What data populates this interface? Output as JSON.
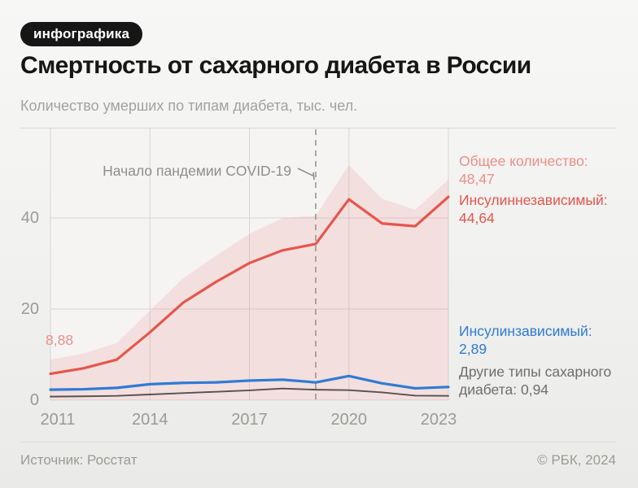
{
  "badge": {
    "label": "инфографика"
  },
  "header": {
    "title": "Смертность от сахарного диабета в России",
    "subtitle": "Количество умерших по типам диабета, тыс. чел."
  },
  "annotation": {
    "text": "Начало пандемии COVID-19"
  },
  "footer": {
    "source": "Источник: Росстат",
    "copyright": "© РБК, 2024"
  },
  "colors": {
    "page_bg": "#f2f2f0",
    "plot_bg": "#f5f4f3",
    "grid": "#d7d6d4",
    "rule": "#dcdbd9",
    "dashed_line": "#98968f",
    "annotation_text": "#8f8e8b",
    "axis_text": "#9b9a97",
    "title_text": "#161616",
    "subtitle_text": "#a3a2a0",
    "badge_bg": "#161616",
    "badge_text": "#ffffff",
    "total_label": "#ee8f89",
    "area_fill_rgba": "rgba(229,86,78,0.13)",
    "red_line": "#e5564d",
    "blue_line": "#2e7bd6",
    "dark_line": "#55524f",
    "dark_label": "#6f6e6c",
    "footer_text": "#9b9a97"
  },
  "chart_data": {
    "type": "area",
    "title": "Смертность от сахарного диабета в России",
    "subtitle": "Количество умерших по типам диабета, тыс. чел.",
    "x": [
      2011,
      2012,
      2013,
      2014,
      2015,
      2016,
      2017,
      2018,
      2019,
      2020,
      2021,
      2022,
      2023
    ],
    "x_tick_labels": [
      "2011",
      "2014",
      "2017",
      "2020",
      "2023"
    ],
    "x_tick_years": [
      2011,
      2014,
      2017,
      2020,
      2023
    ],
    "y_tick_labels": [
      "0",
      "20",
      "40"
    ],
    "y_tick_values": [
      0,
      20,
      40
    ],
    "ylim": [
      0,
      60
    ],
    "grid": true,
    "pandemic_marker": {
      "year": 2019,
      "text": "Начало пандемии COVID-19"
    },
    "series": [
      {
        "id": "total",
        "name": "Общее количество",
        "style": "area",
        "color_key": "total_label",
        "values": [
          8.88,
          10.25,
          12.55,
          19.65,
          26.75,
          31.75,
          36.55,
          39.95,
          40.5,
          51.6,
          44.2,
          41.8,
          48.47
        ],
        "start_label": "8,88",
        "end_value_label": "48,47"
      },
      {
        "id": "type2",
        "name": "Инсулиннезависимый",
        "style": "line",
        "color_key": "red_line",
        "values": [
          5.8,
          7.0,
          8.9,
          14.9,
          21.4,
          26.0,
          30.1,
          32.9,
          34.3,
          44.1,
          38.8,
          38.2,
          44.64
        ],
        "end_value_label": "44,64"
      },
      {
        "id": "type1",
        "name": "Инсулинзависимый",
        "style": "line",
        "color_key": "blue_line",
        "values": [
          2.3,
          2.4,
          2.7,
          3.5,
          3.8,
          3.9,
          4.3,
          4.5,
          3.9,
          5.3,
          3.7,
          2.6,
          2.89
        ],
        "end_value_label": "2,89"
      },
      {
        "id": "other",
        "name": "Другие типы сахарного диабета",
        "style": "line",
        "color_key": "dark_line",
        "values": [
          0.78,
          0.85,
          0.95,
          1.25,
          1.55,
          1.85,
          2.15,
          2.55,
          2.3,
          2.2,
          1.7,
          1.0,
          0.94
        ],
        "end_value_label": "0,94"
      }
    ],
    "side_labels": [
      {
        "series": "total",
        "lines": [
          "Общее количество:",
          "48,47"
        ],
        "color_key": "total_label"
      },
      {
        "series": "type2",
        "lines": [
          "Инсулиннезависимый:",
          "44,64"
        ],
        "color_key": "red_line"
      },
      {
        "series": "type1",
        "lines": [
          "Инсулинзависимый:",
          "2,89"
        ],
        "color_key": "blue_line"
      },
      {
        "series": "other",
        "lines": [
          "Другие типы сахарного",
          "диабета: 0,94"
        ],
        "color_key": "dark_label"
      }
    ]
  }
}
